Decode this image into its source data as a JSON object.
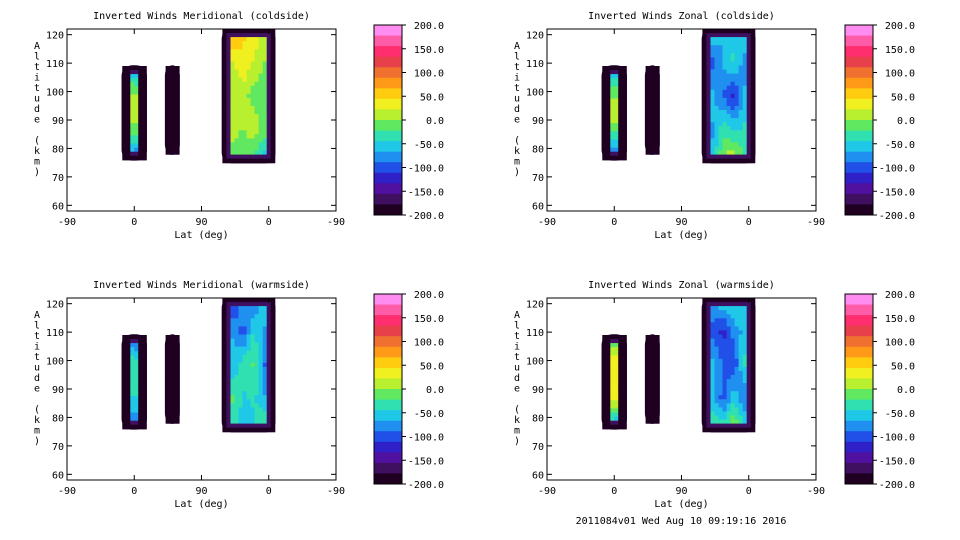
{
  "footer": "2011084v01 Wed Aug 10 09:19:16 2016",
  "colorbar": {
    "labels": [
      "200.0",
      "150.0",
      "100.0",
      "50.0",
      "0.0",
      "-50.0",
      "-100.0",
      "-150.0",
      "-200.0"
    ],
    "colors": [
      "#ff8cf0",
      "#ff5ca8",
      "#ff2e6e",
      "#e8404a",
      "#f07030",
      "#ff9a18",
      "#ffcc10",
      "#f0f020",
      "#b8f030",
      "#60e860",
      "#30e0b0",
      "#20c8e8",
      "#2090f0",
      "#2050e8",
      "#3020c8",
      "#5010a0",
      "#401060",
      "#200020"
    ]
  },
  "chart_data": [
    {
      "type": "heatmap",
      "title": "Inverted Winds Meridional (coldside)",
      "xlabel": "Lat (deg)",
      "ylabel": "Altitude (km)",
      "x_ticks": [
        "-90",
        "0",
        "90",
        "0",
        "-90"
      ],
      "y_ticks": [
        "60",
        "70",
        "80",
        "90",
        "100",
        "110",
        "120"
      ],
      "ylim": [
        58,
        122
      ],
      "zlim": [
        -200,
        200
      ],
      "blobs": [
        {
          "x": [
            -10,
            10
          ],
          "y": [
            76,
            109
          ],
          "values": [
            [
              -160,
              -110,
              -70,
              -110,
              -160
            ],
            [
              -120,
              -30,
              10,
              -40,
              -120
            ],
            [
              -100,
              -20,
              30,
              -10,
              -110
            ],
            [
              -130,
              -50,
              -10,
              -60,
              -140
            ],
            [
              -170,
              -120,
              -90,
              -130,
              -170
            ]
          ]
        },
        {
          "x": [
            48,
            54
          ],
          "y": [
            78,
            109
          ],
          "values": [
            [
              -170,
              -130,
              -170
            ],
            [
              -140,
              -70,
              -140
            ],
            [
              -160,
              -110,
              -160
            ]
          ]
        },
        {
          "x": [
            124,
            182
          ],
          "y": [
            75,
            122
          ],
          "values": [
            [
              60,
              80,
              50,
              40,
              10,
              -20
            ],
            [
              40,
              20,
              40,
              20,
              0,
              -10
            ],
            [
              30,
              0,
              10,
              -10,
              -20,
              -10
            ],
            [
              20,
              10,
              0,
              20,
              -10,
              -40
            ],
            [
              -10,
              -20,
              -30,
              -40,
              -60,
              -120
            ]
          ]
        }
      ]
    },
    {
      "type": "heatmap",
      "title": "Inverted Winds Zonal (coldside)",
      "xlabel": "Lat (deg)",
      "ylabel": "Altitude (km)",
      "x_ticks": [
        "-90",
        "0",
        "90",
        "0",
        "-90"
      ],
      "y_ticks": [
        "60",
        "70",
        "80",
        "90",
        "100",
        "110",
        "120"
      ],
      "ylim": [
        58,
        122
      ],
      "zlim": [
        -200,
        200
      ],
      "blobs": [
        {
          "x": [
            -10,
            10
          ],
          "y": [
            76,
            109
          ],
          "values": [
            [
              -150,
              -100,
              -70,
              -100,
              -150
            ],
            [
              -110,
              -40,
              0,
              -50,
              -120
            ],
            [
              -100,
              -20,
              40,
              -20,
              -110
            ],
            [
              -120,
              -50,
              -20,
              -60,
              -140
            ],
            [
              -170,
              -120,
              -90,
              -130,
              -170
            ]
          ]
        },
        {
          "x": [
            48,
            54
          ],
          "y": [
            78,
            109
          ],
          "values": [
            [
              -170,
              -120,
              -170
            ],
            [
              -140,
              -80,
              -140
            ],
            [
              -160,
              -110,
              -160
            ]
          ]
        },
        {
          "x": [
            124,
            182
          ],
          "y": [
            75,
            122
          ],
          "values": [
            [
              -60,
              -40,
              -70,
              -50,
              -30,
              -20
            ],
            [
              -70,
              -100,
              -60,
              -40,
              -80,
              -60
            ],
            [
              -80,
              -60,
              -90,
              -120,
              -60,
              -70
            ],
            [
              -40,
              -70,
              -30,
              -50,
              -40,
              -60
            ],
            [
              -90,
              -60,
              10,
              30,
              -20,
              -60
            ]
          ]
        }
      ]
    },
    {
      "type": "heatmap",
      "title": "Inverted Winds Meridional (warmside)",
      "xlabel": "Lat (deg)",
      "ylabel": "Altitude (km)",
      "x_ticks": [
        "-90",
        "0",
        "90",
        "0",
        "-90"
      ],
      "y_ticks": [
        "60",
        "70",
        "80",
        "90",
        "100",
        "110",
        "120"
      ],
      "ylim": [
        58,
        122
      ],
      "zlim": [
        -200,
        200
      ],
      "blobs": [
        {
          "x": [
            -10,
            10
          ],
          "y": [
            76,
            109
          ],
          "values": [
            [
              -140,
              -100,
              -110,
              -100,
              -140
            ],
            [
              -110,
              -60,
              -30,
              -70,
              -120
            ],
            [
              -100,
              -20,
              -40,
              -30,
              -110
            ],
            [
              -120,
              -70,
              -40,
              -70,
              -140
            ],
            [
              -170,
              -120,
              -100,
              -130,
              -170
            ]
          ]
        },
        {
          "x": [
            48,
            54
          ],
          "y": [
            78,
            109
          ],
          "values": [
            [
              -170,
              -100,
              -170
            ],
            [
              -130,
              -10,
              -130
            ],
            [
              -160,
              -90,
              -160
            ]
          ]
        },
        {
          "x": [
            124,
            182
          ],
          "y": [
            75,
            122
          ],
          "values": [
            [
              -80,
              -120,
              -60,
              -100,
              -40,
              -120
            ],
            [
              -50,
              -70,
              -100,
              -40,
              -70,
              -130
            ],
            [
              -40,
              -60,
              -30,
              -20,
              -90,
              -80
            ],
            [
              -30,
              -20,
              -50,
              -40,
              -60,
              -150
            ],
            [
              -110,
              -30,
              -60,
              -50,
              -10,
              60
            ]
          ]
        }
      ]
    },
    {
      "type": "heatmap",
      "title": "Inverted Winds Zonal (warmside)",
      "xlabel": "Lat (deg)",
      "ylabel": "Altitude (km)",
      "x_ticks": [
        "-90",
        "0",
        "90",
        "0",
        "-90"
      ],
      "y_ticks": [
        "60",
        "70",
        "80",
        "90",
        "100",
        "110",
        "120"
      ],
      "ylim": [
        58,
        122
      ],
      "zlim": [
        -200,
        200
      ],
      "blobs": [
        {
          "x": [
            -10,
            10
          ],
          "y": [
            76,
            109
          ],
          "values": [
            [
              -140,
              -30,
              -20,
              -30,
              -140
            ],
            [
              -110,
              20,
              30,
              20,
              -120
            ],
            [
              -100,
              30,
              40,
              30,
              -110
            ],
            [
              -120,
              20,
              20,
              10,
              -140
            ],
            [
              -170,
              -100,
              -90,
              -110,
              -170
            ]
          ]
        },
        {
          "x": [
            48,
            54
          ],
          "y": [
            78,
            109
          ],
          "values": [
            [
              -170,
              -120,
              -170
            ],
            [
              -140,
              -60,
              -140
            ],
            [
              -160,
              -110,
              -160
            ]
          ]
        },
        {
          "x": [
            124,
            182
          ],
          "y": [
            75,
            122
          ],
          "values": [
            [
              -80,
              -60,
              -40,
              -30,
              -50,
              -40
            ],
            [
              -70,
              -100,
              -120,
              -80,
              -60,
              -30
            ],
            [
              -40,
              -60,
              -90,
              -110,
              -40,
              -10
            ],
            [
              -30,
              -60,
              -100,
              -50,
              -90,
              0
            ],
            [
              -30,
              -20,
              -20,
              10,
              -30,
              40
            ]
          ]
        }
      ]
    }
  ]
}
